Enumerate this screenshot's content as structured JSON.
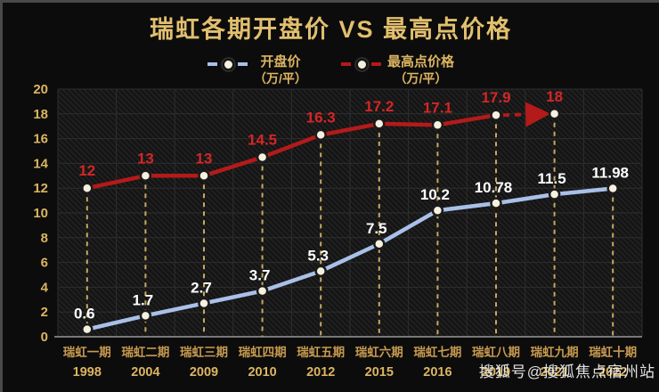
{
  "title": "瑞虹各期开盘价 VS 最高点价格",
  "watermark": "搜狐号@搜狐焦点宿州站",
  "legend": {
    "open": {
      "label": "开盘价",
      "unit": "（万/平）"
    },
    "high": {
      "label": "最高点价格",
      "unit": "（万/平）"
    }
  },
  "colors": {
    "background": "#0c0c0c",
    "title": "#e2bf6e",
    "y_tick_label": "#dcb561",
    "category_label": "#c89a50",
    "year_label": "#dcb561",
    "open_line": "#a9c0e8",
    "high_line": "#b51a1a",
    "open_label": "#ffffff",
    "high_label": "#d42626",
    "drop_line": "#c9a95f",
    "grid": "#2e2e2e",
    "hatch": "#262626",
    "plot_bg": "#151515",
    "dot_fill": "#f6f1df",
    "dot_ring": "#1b1b1b",
    "axis_line": "#9a9a9a"
  },
  "chart_data": {
    "type": "line",
    "categories": [
      "瑞虹一期",
      "瑞虹二期",
      "瑞虹三期",
      "瑞虹四期",
      "瑞虹五期",
      "瑞虹六期",
      "瑞虹七期",
      "瑞虹八期",
      "瑞虹九期",
      "瑞虹十期"
    ],
    "years": [
      "1998",
      "2004",
      "2009",
      "2010",
      "2012",
      "2015",
      "2016",
      "2019",
      "2021",
      "2022"
    ],
    "series": [
      {
        "name": "开盘价（万/平）",
        "values": [
          0.6,
          1.7,
          2.7,
          3.7,
          5.3,
          7.5,
          10.2,
          10.78,
          11.5,
          11.98
        ]
      },
      {
        "name": "最高点价格（万/平）",
        "values": [
          12,
          13,
          13,
          14.5,
          16.3,
          17.2,
          17.1,
          17.9,
          18,
          null
        ]
      }
    ],
    "ylim": [
      0,
      20
    ],
    "ytick_step": 2,
    "grid": true,
    "legend_position": "top",
    "high_last_segment": "dashed-arrow",
    "drop_lines": "dashed vertical line from each point to x-axis"
  }
}
